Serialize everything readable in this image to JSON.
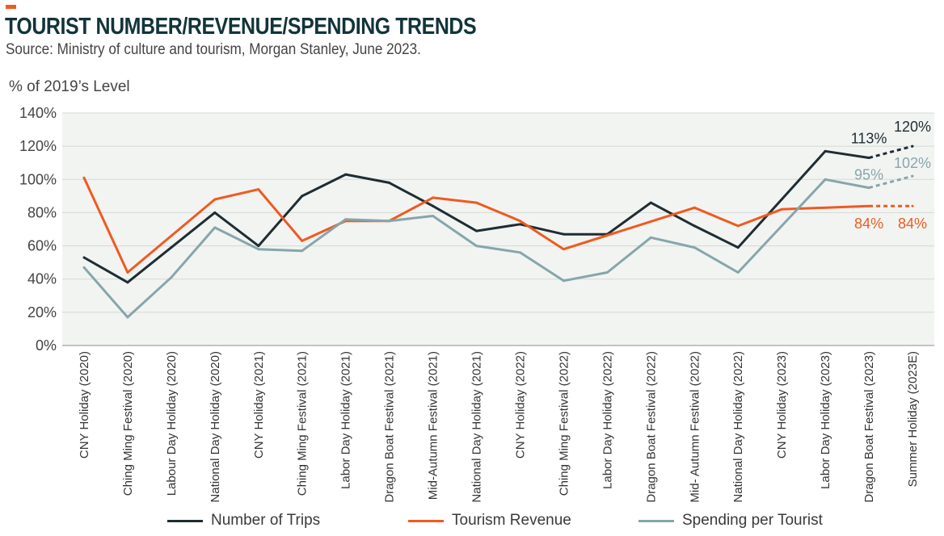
{
  "header": {
    "title": "TOURIST NUMBER/REVENUE/SPENDING TRENDS",
    "subtitle": "Source: Ministry of culture and tourism, Morgan Stanley, June 2023."
  },
  "colors": {
    "accent": "#f05a1f",
    "trips": "#1f2d33",
    "revenue": "#f05a1f",
    "spending": "#86a6ab",
    "plot_bg": "#f2f4f2",
    "grid": "#d6d8d6"
  },
  "chart_data": {
    "type": "line",
    "title": "TOURIST NUMBER/REVENUE/SPENDING TRENDS",
    "subtitle": "Source: Ministry of culture and tourism, Morgan Stanley, June 2023.",
    "ylabel": "% of 2019’s Level",
    "xlabel": "",
    "ylim": [
      0,
      140
    ],
    "yticks": [
      0,
      20,
      40,
      60,
      80,
      100,
      120,
      140
    ],
    "ytick_labels": [
      "0%",
      "20%",
      "40%",
      "60%",
      "80%",
      "100%",
      "120%",
      "140%"
    ],
    "grid": true,
    "legend_position": "bottom",
    "categories": [
      "CNY Holiday  (2020)",
      "Ching Ming Festival (2020)",
      "Labour Day Holiday (2020)",
      "National Day Holiday (2020)",
      "CNY Holiday  (2021)",
      "Ching Ming Festival (2021)",
      "Labor Day Holiday (2021)",
      "Dragon Boat Festival (2021)",
      "Mid-Autumn  Festival (2021)",
      "National Day Holiday (2021)",
      "CNY Holiday (2022)",
      "Ching Ming Festival (2022)",
      "Labor Day Holiday (2022)",
      "Dragon Boat Festival (2022)",
      "Mid- Autumn Festival (2022)",
      "National Day  Holiday (2022)",
      "CNY Holiday (2023)",
      "Labor Day Holiday (2023)",
      "Dragon Boat Festival (2023)",
      "Summer Holiday (2023E)"
    ],
    "series": [
      {
        "name": "Number of Trips",
        "color": "#1f2d33",
        "values": [
          53,
          38,
          59,
          80,
          60,
          90,
          103,
          98,
          84,
          69,
          73,
          67,
          67,
          86,
          72,
          59,
          88,
          117,
          113,
          120
        ],
        "dashed_from_index": 18
      },
      {
        "name": "Tourism Revenue",
        "color": "#f05a1f",
        "values": [
          101,
          44,
          null,
          88,
          94,
          63,
          75,
          75,
          89,
          86,
          75,
          58,
          null,
          null,
          83,
          72,
          82,
          null,
          84,
          84
        ],
        "dashed_from_index": 18
      },
      {
        "name": "Spending per Tourist",
        "color": "#86a6ab",
        "values": [
          47,
          17,
          41,
          71,
          58,
          57,
          76,
          75,
          78,
          60,
          56,
          39,
          44,
          65,
          59,
          44,
          72,
          100,
          95,
          102
        ],
        "dashed_from_index": 18
      }
    ],
    "annotations": [
      {
        "text": "113%",
        "series": "Number of Trips",
        "index": 18
      },
      {
        "text": "120%",
        "series": "Number of Trips",
        "index": 19
      },
      {
        "text": "95%",
        "series": "Spending per Tourist",
        "index": 18
      },
      {
        "text": "102%",
        "series": "Spending per Tourist",
        "index": 19
      },
      {
        "text": "84%",
        "series": "Tourism Revenue",
        "index": 18
      },
      {
        "text": "84%",
        "series": "Tourism Revenue",
        "index": 19
      }
    ]
  },
  "legend": [
    {
      "label": "Number of Trips",
      "color": "#1f2d33"
    },
    {
      "label": "Tourism Revenue",
      "color": "#f05a1f"
    },
    {
      "label": "Spending per Tourist",
      "color": "#86a6ab"
    }
  ]
}
